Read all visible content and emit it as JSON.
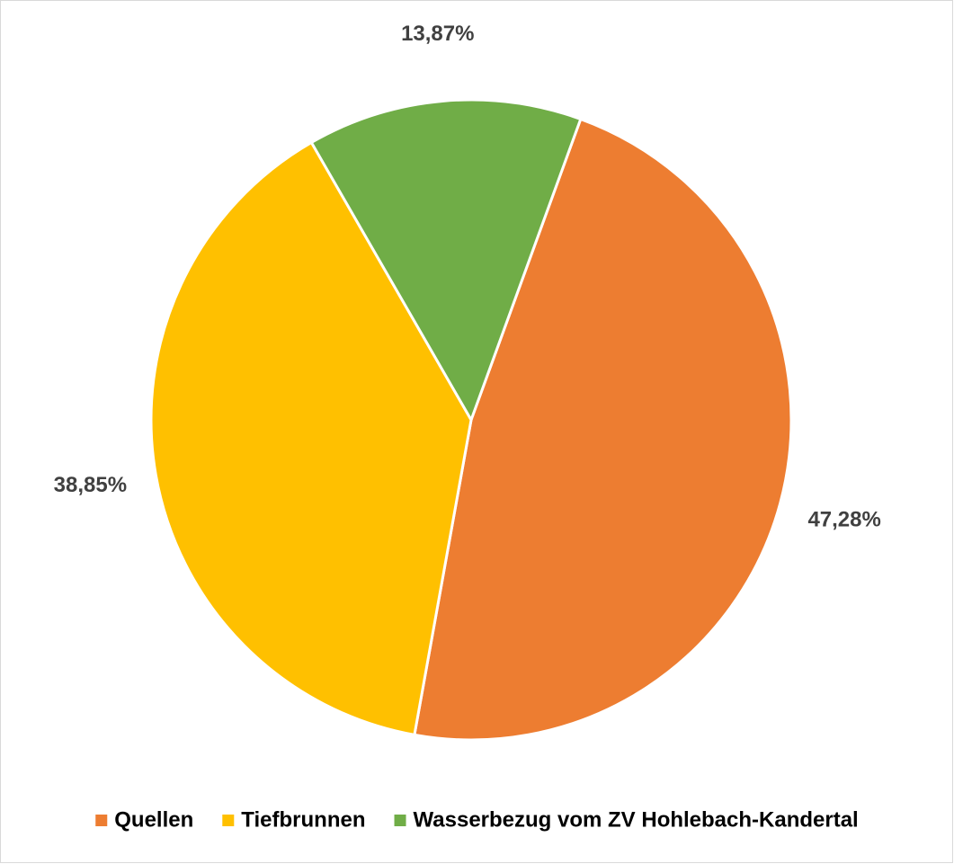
{
  "chart_data": {
    "type": "pie",
    "categories": [
      "Quellen",
      "Tiefbrunnen",
      "Wasserbezug vom ZV Hohlebach-Kandertal"
    ],
    "values": [
      47.28,
      38.85,
      13.87
    ],
    "value_labels": [
      "47,28%",
      "38,85%",
      "13,87%"
    ],
    "colors": [
      "#ED7D31",
      "#FFC000",
      "#70AD47"
    ],
    "legend": "bottom"
  }
}
